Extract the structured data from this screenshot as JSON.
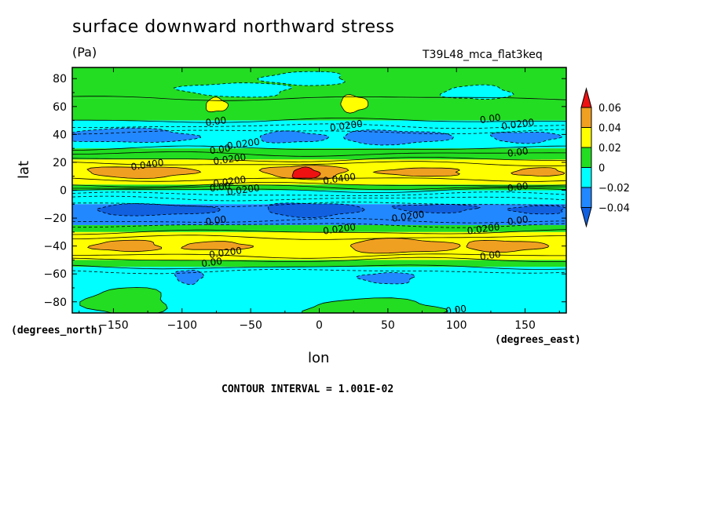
{
  "title": "surface downward northward stress",
  "units": "(Pa)",
  "run_label": "T39L48_mca_flat3keq",
  "colors": {
    "red": "#ee1111",
    "orange": "#f0a020",
    "yellow": "#ffff00",
    "green": "#22dd22",
    "cyan": "#00ffff",
    "blue": "#2288ff",
    "frame": "#000000"
  },
  "chart_data": {
    "type": "heatmap",
    "xlabel": "lon",
    "ylabel": "lat",
    "x_units": "(degrees_east)",
    "y_units": "(degrees_north)",
    "xlim": [
      -180,
      180
    ],
    "ylim": [
      -88,
      88
    ],
    "x_ticks": [
      -150,
      -100,
      -50,
      0,
      50,
      100,
      150
    ],
    "y_ticks": [
      -80,
      -60,
      -40,
      -20,
      0,
      20,
      40,
      60,
      80
    ],
    "contour_interval_text": "CONTOUR INTERVAL = 1.001E-02",
    "legend": {
      "placement": "right",
      "tick_labels": [
        "0.06",
        "0.04",
        "0.02",
        "0",
        "-0.02",
        "-0.04"
      ],
      "bins": [
        {
          "from": 0.06,
          "to": null,
          "color": "#ee1111"
        },
        {
          "from": 0.04,
          "to": 0.06,
          "color": "#f0a020"
        },
        {
          "from": 0.02,
          "to": 0.04,
          "color": "#ffff00"
        },
        {
          "from": 0.0,
          "to": 0.02,
          "color": "#22dd22"
        },
        {
          "from": -0.02,
          "to": 0.0,
          "color": "#00ffff"
        },
        {
          "from": -0.04,
          "to": -0.02,
          "color": "#2288ff"
        },
        {
          "from": null,
          "to": -0.04,
          "color": "#1060e0"
        }
      ]
    },
    "latitude_bands": [
      {
        "lat_min": 66,
        "lat_max": 88,
        "color": "#22dd22"
      },
      {
        "lat_min": 50,
        "lat_max": 66,
        "color": "#22dd22"
      },
      {
        "lat_min": 30,
        "lat_max": 50,
        "color": "#00ffff"
      },
      {
        "lat_min": 22,
        "lat_max": 30,
        "color": "#22dd22"
      },
      {
        "lat_min": 4,
        "lat_max": 22,
        "color": "#ffff00"
      },
      {
        "lat_min": 0,
        "lat_max": 4,
        "color": "#22dd22"
      },
      {
        "lat_min": -10,
        "lat_max": 0,
        "color": "#00ffff"
      },
      {
        "lat_min": -25,
        "lat_max": -10,
        "color": "#2288ff"
      },
      {
        "lat_min": -30,
        "lat_max": -25,
        "color": "#22dd22"
      },
      {
        "lat_min": -50,
        "lat_max": -30,
        "color": "#ffff00"
      },
      {
        "lat_min": -55,
        "lat_max": -50,
        "color": "#22dd22"
      },
      {
        "lat_min": -88,
        "lat_max": -55,
        "color": "#00ffff"
      }
    ],
    "blobs": [
      {
        "lon": -140,
        "lat": 39,
        "rlon": 50,
        "rlat": 5,
        "color": "#2288ff"
      },
      {
        "lon": -20,
        "lat": 38,
        "rlon": 25,
        "rlat": 4,
        "color": "#2288ff"
      },
      {
        "lon": 55,
        "lat": 38,
        "rlon": 40,
        "rlat": 5,
        "color": "#2288ff"
      },
      {
        "lon": 150,
        "lat": 38,
        "rlon": 25,
        "rlat": 4,
        "color": "#2288ff"
      },
      {
        "lon": -60,
        "lat": 72,
        "rlon": 40,
        "rlat": 5,
        "color": "#00ffff"
      },
      {
        "lon": -10,
        "lat": 80,
        "rlon": 30,
        "rlat": 5,
        "color": "#00ffff"
      },
      {
        "lon": 115,
        "lat": 70,
        "rlon": 25,
        "rlat": 5,
        "color": "#00ffff"
      },
      {
        "lon": -75,
        "lat": 61,
        "rlon": 8,
        "rlat": 5,
        "color": "#ffff00"
      },
      {
        "lon": 25,
        "lat": 62,
        "rlon": 10,
        "rlat": 6,
        "color": "#ffff00"
      },
      {
        "lon": -130,
        "lat": 13,
        "rlon": 40,
        "rlat": 4,
        "color": "#f0a020"
      },
      {
        "lon": -10,
        "lat": 13,
        "rlon": 30,
        "rlat": 5,
        "color": "#f0a020"
      },
      {
        "lon": 75,
        "lat": 13,
        "rlon": 30,
        "rlat": 3,
        "color": "#f0a020"
      },
      {
        "lon": 160,
        "lat": 13,
        "rlon": 18,
        "rlat": 3,
        "color": "#f0a020"
      },
      {
        "lon": -10,
        "lat": 12,
        "rlon": 10,
        "rlat": 4,
        "color": "#ee1111"
      },
      {
        "lon": -120,
        "lat": -14,
        "rlon": 45,
        "rlat": 4,
        "color": "#1060e0"
      },
      {
        "lon": -5,
        "lat": -14,
        "rlon": 35,
        "rlat": 5,
        "color": "#1060e0"
      },
      {
        "lon": 85,
        "lat": -13,
        "rlon": 30,
        "rlat": 3,
        "color": "#1060e0"
      },
      {
        "lon": 160,
        "lat": -14,
        "rlon": 20,
        "rlat": 3,
        "color": "#1060e0"
      },
      {
        "lon": -140,
        "lat": -40,
        "rlon": 25,
        "rlat": 4,
        "color": "#f0a020"
      },
      {
        "lon": -75,
        "lat": -40,
        "rlon": 25,
        "rlat": 3,
        "color": "#f0a020"
      },
      {
        "lon": 60,
        "lat": -40,
        "rlon": 40,
        "rlat": 5,
        "color": "#f0a020"
      },
      {
        "lon": 135,
        "lat": -40,
        "rlon": 30,
        "rlat": 4,
        "color": "#f0a020"
      },
      {
        "lon": -95,
        "lat": -62,
        "rlon": 10,
        "rlat": 5,
        "color": "#2288ff"
      },
      {
        "lon": 50,
        "lat": -63,
        "rlon": 20,
        "rlat": 4,
        "color": "#2288ff"
      },
      {
        "lon": -140,
        "lat": -80,
        "rlon": 30,
        "rlat": 10,
        "color": "#22dd22"
      },
      {
        "lon": 40,
        "lat": -85,
        "rlon": 50,
        "rlat": 7,
        "color": "#22dd22"
      }
    ],
    "contour_labels": [
      {
        "text": "0.00",
        "lon": -75,
        "lat": 47
      },
      {
        "text": "0.00",
        "lon": -72,
        "lat": 27
      },
      {
        "text": "0.0200",
        "lon": -55,
        "lat": 31
      },
      {
        "text": "0.0200",
        "lon": -65,
        "lat": 20
      },
      {
        "text": "0.0400",
        "lon": -125,
        "lat": 16
      },
      {
        "text": "0.0200",
        "lon": 20,
        "lat": 44
      },
      {
        "text": "0.0200",
        "lon": -65,
        "lat": 4
      },
      {
        "text": "0.0200",
        "lon": -55,
        "lat": -2
      },
      {
        "text": "0.00",
        "lon": -72,
        "lat": 0
      },
      {
        "text": "0.0400",
        "lon": 15,
        "lat": 6
      },
      {
        "text": "0.00",
        "lon": 125,
        "lat": 49
      },
      {
        "text": "0.0200",
        "lon": 145,
        "lat": 45
      },
      {
        "text": "0.00",
        "lon": 145,
        "lat": 25
      },
      {
        "text": "0.00",
        "lon": 145,
        "lat": 0
      },
      {
        "text": "0.00",
        "lon": -75,
        "lat": -24
      },
      {
        "text": "0.0200",
        "lon": 65,
        "lat": -21
      },
      {
        "text": "0.0200",
        "lon": 15,
        "lat": -30
      },
      {
        "text": "0.0200",
        "lon": 120,
        "lat": -30
      },
      {
        "text": "0.00",
        "lon": 145,
        "lat": -24
      },
      {
        "text": "0.0200",
        "lon": -68,
        "lat": -47
      },
      {
        "text": "0.00",
        "lon": -78,
        "lat": -54
      },
      {
        "text": "0.00",
        "lon": 125,
        "lat": -49
      },
      {
        "text": "0.00",
        "lon": 100,
        "lat": -88
      }
    ]
  }
}
